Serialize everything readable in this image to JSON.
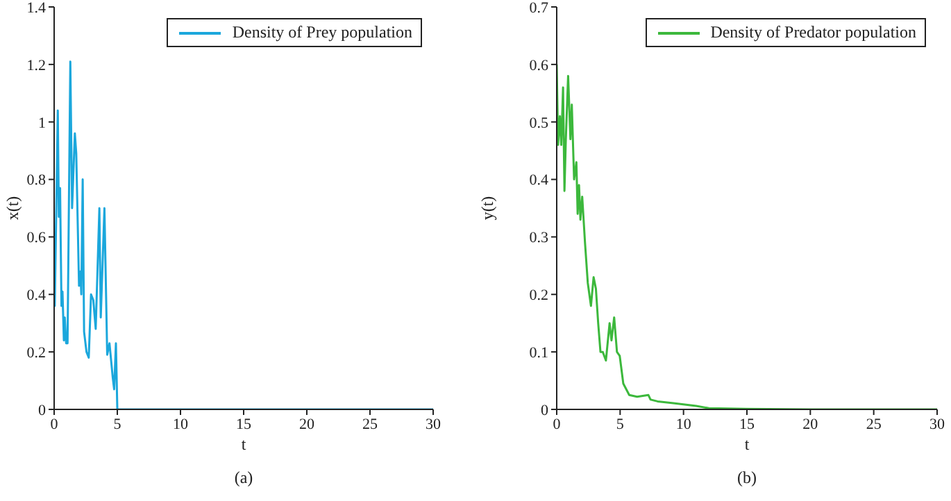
{
  "chart_data": [
    {
      "type": "line",
      "xlabel": "t",
      "ylabel": "x(t)",
      "xlim": [
        0,
        30
      ],
      "xticks": [
        0,
        5,
        10,
        15,
        20,
        25,
        30
      ],
      "ylim": [
        0,
        1.4
      ],
      "yticks": [
        0,
        0.2,
        0.4,
        0.6,
        0.8,
        1,
        1.2,
        1.4
      ],
      "legend": "top right",
      "marker": "none",
      "line_style": "solid",
      "annotations": [
        "(a)"
      ],
      "x": [
        0,
        0.05,
        0.29,
        0.37,
        0.47,
        0.58,
        0.66,
        0.77,
        0.84,
        0.95,
        1.06,
        1.28,
        1.42,
        1.64,
        1.75,
        1.97,
        2.08,
        2.15,
        2.26,
        2.37,
        2.56,
        2.74,
        2.92,
        3.1,
        3.29,
        3.58,
        3.69,
        3.98,
        4.2,
        4.38,
        4.64,
        4.75,
        4.89,
        5,
        10,
        15,
        20,
        25,
        30
      ],
      "series": [
        {
          "name": "Density of Prey population",
          "color": "#1ba7dc",
          "values": [
            0.59,
            0.36,
            1.04,
            0.67,
            0.77,
            0.36,
            0.41,
            0.24,
            0.32,
            0.23,
            0.23,
            1.21,
            0.7,
            0.96,
            0.89,
            0.43,
            0.48,
            0.4,
            0.8,
            0.27,
            0.2,
            0.18,
            0.4,
            0.38,
            0.28,
            0.7,
            0.32,
            0.7,
            0.19,
            0.23,
            0.11,
            0.07,
            0.23,
            0,
            0,
            0,
            0,
            0,
            0
          ]
        }
      ]
    },
    {
      "type": "line",
      "xlabel": "t",
      "ylabel": "y(t)",
      "xlim": [
        0,
        30
      ],
      "xticks": [
        0,
        5,
        10,
        15,
        20,
        25,
        30
      ],
      "ylim": [
        0,
        0.7
      ],
      "yticks": [
        0,
        0.1,
        0.2,
        0.3,
        0.4,
        0.5,
        0.6,
        0.7
      ],
      "legend": "top right",
      "marker": "none",
      "line_style": "solid",
      "annotations": [
        "(b)"
      ],
      "x": [
        0,
        0.11,
        0.25,
        0.36,
        0.5,
        0.61,
        0.72,
        0.9,
        1.08,
        1.19,
        1.37,
        1.55,
        1.65,
        1.76,
        1.87,
        2.01,
        2.23,
        2.45,
        2.7,
        2.91,
        3.09,
        3.27,
        3.45,
        3.63,
        3.88,
        4.17,
        4.32,
        4.53,
        4.75,
        4.97,
        5.25,
        5.72,
        6.34,
        7.23,
        7.4,
        7.95,
        9.2,
        11,
        12,
        15,
        20,
        30
      ],
      "series": [
        {
          "name": "Density of Predator population",
          "color": "#3cb83c",
          "values": [
            0.6,
            0.46,
            0.51,
            0.46,
            0.56,
            0.38,
            0.47,
            0.58,
            0.47,
            0.53,
            0.4,
            0.43,
            0.34,
            0.39,
            0.33,
            0.37,
            0.29,
            0.22,
            0.18,
            0.23,
            0.21,
            0.15,
            0.1,
            0.1,
            0.085,
            0.15,
            0.12,
            0.16,
            0.1,
            0.093,
            0.045,
            0.025,
            0.022,
            0.025,
            0.017,
            0.014,
            0.011,
            0.006,
            0.002,
            0.001,
            0,
            0
          ]
        }
      ]
    }
  ]
}
